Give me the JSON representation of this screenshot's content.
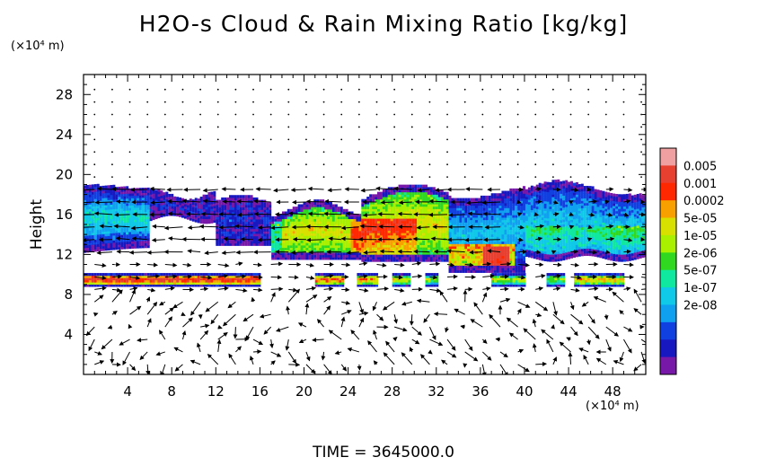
{
  "title": "H2O-s Cloud & Rain Mixing Ratio [kg/kg]",
  "y_unit": "(×10⁴ m)",
  "x_unit": "(×10⁴ m)",
  "footer": "TIME = 3645000.0",
  "chart_data": {
    "type": "heatmap",
    "title": "H2O-s Cloud & Rain Mixing Ratio [kg/kg]",
    "xlabel": "",
    "ylabel": "Height",
    "xlim": [
      0,
      51
    ],
    "ylim": [
      0,
      30
    ],
    "x_ticks": [
      "4",
      "8",
      "12",
      "16",
      "20",
      "24",
      "28",
      "32",
      "36",
      "40",
      "44",
      "48"
    ],
    "y_ticks": [
      "4",
      "8",
      "12",
      "16",
      "20",
      "24",
      "28"
    ],
    "x_tick_values": [
      4,
      8,
      12,
      16,
      20,
      24,
      28,
      32,
      36,
      40,
      44,
      48
    ],
    "y_tick_values": [
      4,
      8,
      12,
      16,
      20,
      24,
      28
    ],
    "colorbar": {
      "labels": [
        "0.005",
        "0.001",
        "0.0002",
        "5e-05",
        "1e-05",
        "2e-06",
        "5e-07",
        "1e-07",
        "2e-08"
      ],
      "colors": [
        "#f0a0a0",
        "#e84030",
        "#ff2800",
        "#f8a000",
        "#d8e000",
        "#a8f000",
        "#30d820",
        "#10e8a0",
        "#10c8e8",
        "#10a0f0",
        "#1040e0",
        "#1818c0",
        "#7818a8"
      ]
    },
    "fields": [
      {
        "band": "lower thin cloud layer",
        "x_range": [
          0,
          49
        ],
        "y_range": [
          8.8,
          10.2
        ],
        "peak_value": "0.001"
      },
      {
        "band": "upper anvil",
        "x_range": [
          0,
          51
        ],
        "y_range": [
          11,
          19
        ],
        "peak_value": "0.005",
        "peak_x": 37,
        "peak_y": 12
      }
    ],
    "overlay": "wind vectors"
  }
}
